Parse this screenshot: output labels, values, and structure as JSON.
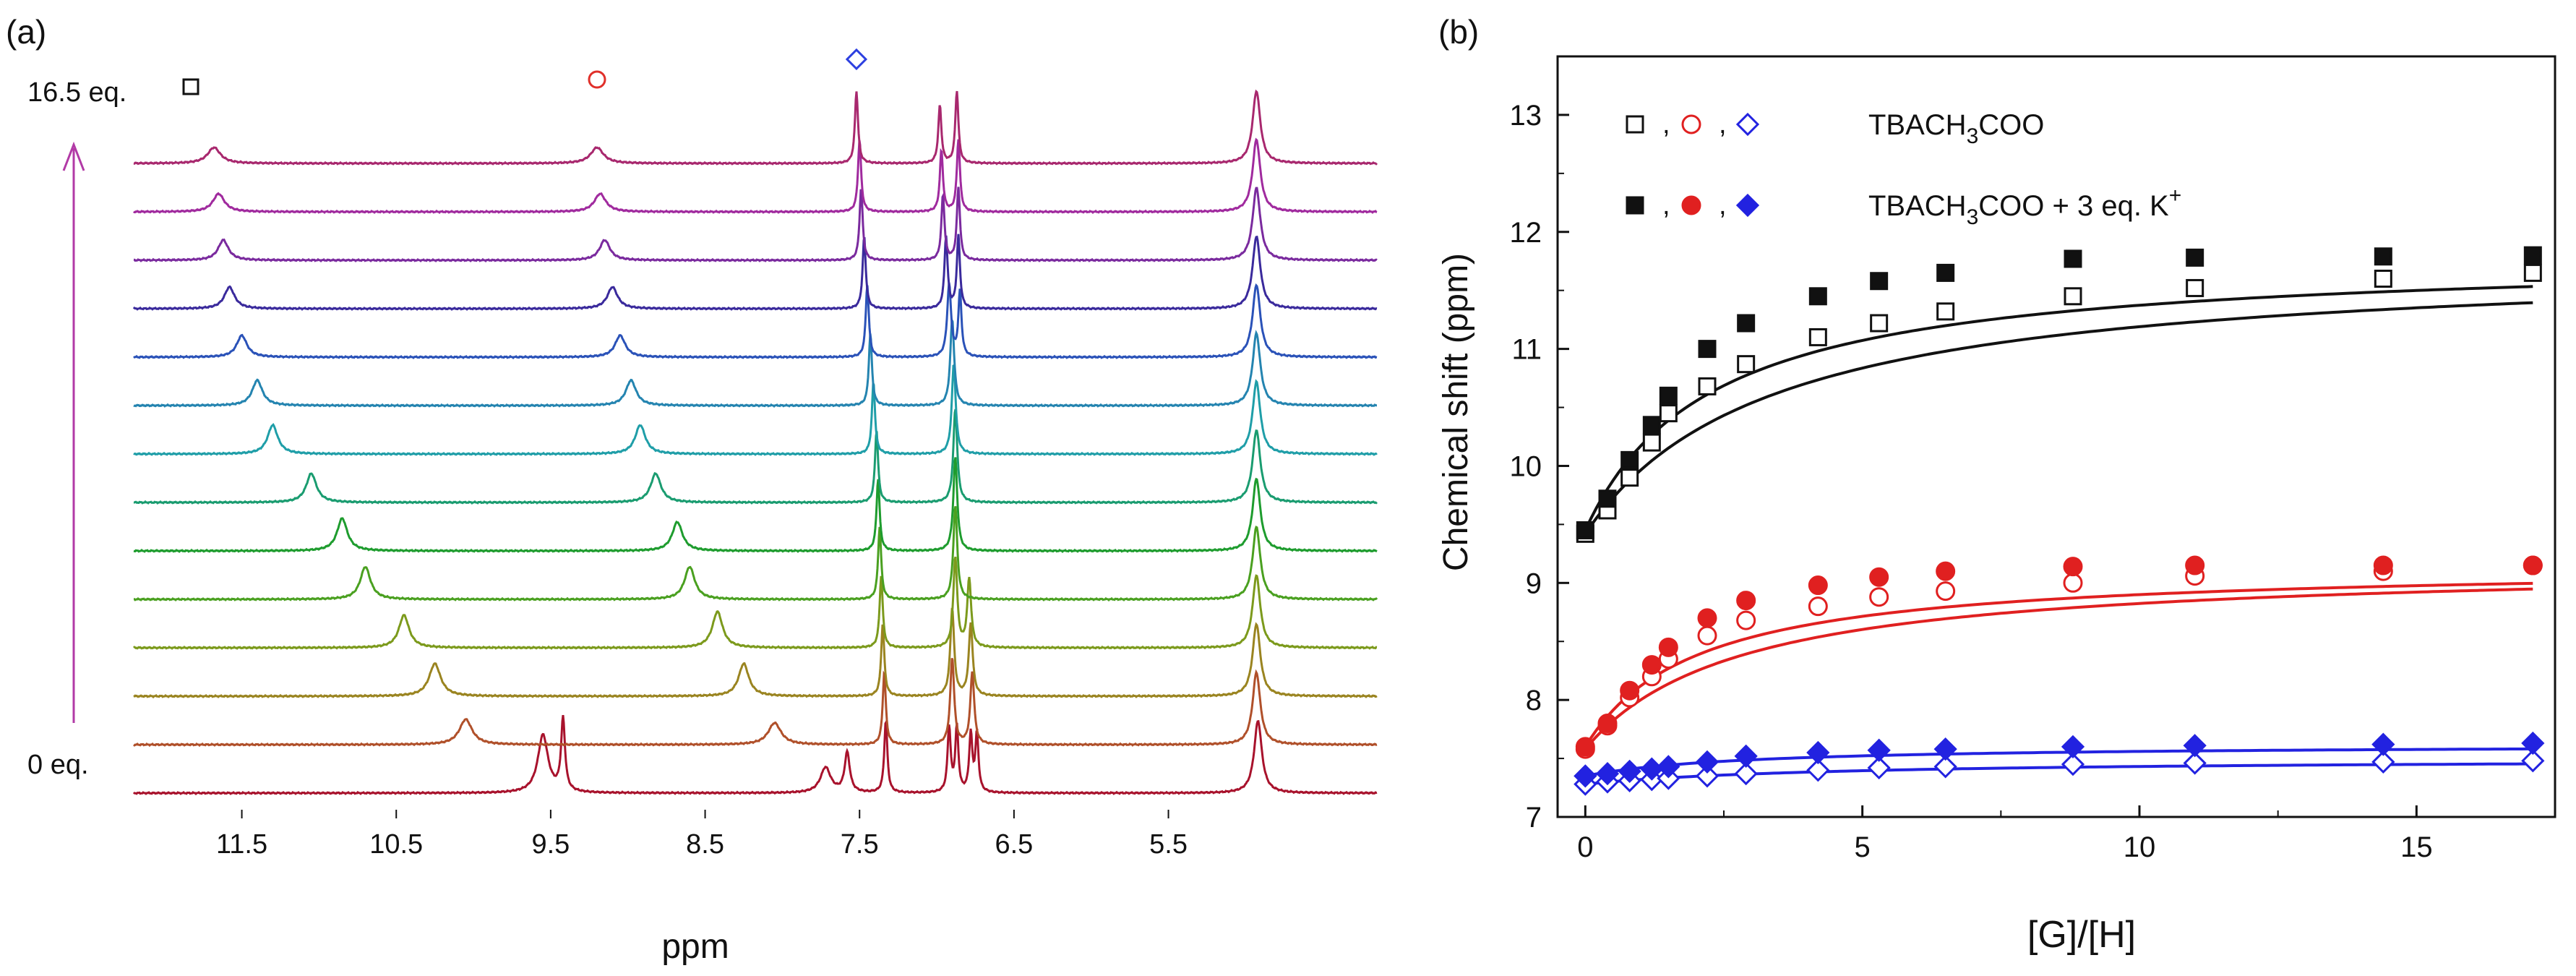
{
  "chart_data": [
    {
      "panel_label": "(a)",
      "type": "line",
      "title": "",
      "xlabel": "ppm",
      "x_reversed": true,
      "xlim": [
        12.2,
        4.15
      ],
      "x_ticks": [
        "11.5",
        "10.5",
        "9.5",
        "8.5",
        "7.5",
        "6.5",
        "5.5"
      ],
      "x_tick_values": [
        11.5,
        10.5,
        9.5,
        8.5,
        7.5,
        6.5,
        5.5
      ],
      "top_label": "16.5 eq.",
      "bottom_label": "0 eq.",
      "markers": [
        {
          "symbol": "open-square",
          "color": "#111111",
          "label": "□"
        },
        {
          "symbol": "open-circle",
          "color": "#e0302a",
          "label": "○",
          "ppm": 9.2
        },
        {
          "symbol": "open-diamond",
          "color": "#2c3fe0",
          "label": "◇",
          "ppm": 7.52
        }
      ],
      "arrow_color": "#b23aa6",
      "series_colors": [
        "#a8122c",
        "#b0502a",
        "#9a8420",
        "#7c9a1c",
        "#4aa020",
        "#1e9c2e",
        "#1a9c70",
        "#1f9ea8",
        "#2484b0",
        "#2a52b8",
        "#3a2a9c",
        "#7a2a9e",
        "#a02a9e",
        "#a8286e"
      ],
      "spectra": [
        {
          "eq": 0,
          "peaks": [
            {
              "ppm": 9.55,
              "h": 0.8,
              "w": 0.04
            },
            {
              "ppm": 9.42,
              "h": 1.0,
              "w": 0.015
            },
            {
              "ppm": 7.72,
              "h": 0.35,
              "w": 0.04
            },
            {
              "ppm": 7.58,
              "h": 0.55,
              "w": 0.02
            },
            {
              "ppm": 7.33,
              "h": 1.0,
              "w": 0.012
            },
            {
              "ppm": 6.92,
              "h": 0.9,
              "w": 0.012
            },
            {
              "ppm": 6.87,
              "h": 0.9,
              "w": 0.012
            },
            {
              "ppm": 6.78,
              "h": 0.8,
              "w": 0.012
            },
            {
              "ppm": 6.74,
              "h": 0.8,
              "w": 0.012
            },
            {
              "ppm": 4.92,
              "h": 1.0,
              "w": 0.03
            }
          ]
        },
        {
          "eq": 0.4,
          "peaks": [
            {
              "ppm": 10.05,
              "h": 0.35,
              "w": 0.05
            },
            {
              "ppm": 8.05,
              "h": 0.3,
              "w": 0.05
            },
            {
              "ppm": 7.34,
              "h": 1.0,
              "w": 0.012
            },
            {
              "ppm": 6.9,
              "h": 1.2,
              "w": 0.015
            },
            {
              "ppm": 6.77,
              "h": 1.0,
              "w": 0.015
            },
            {
              "ppm": 4.93,
              "h": 1.0,
              "w": 0.03
            }
          ]
        },
        {
          "eq": 0.8,
          "peaks": [
            {
              "ppm": 10.25,
              "h": 0.45,
              "w": 0.045
            },
            {
              "ppm": 8.25,
              "h": 0.45,
              "w": 0.04
            },
            {
              "ppm": 7.35,
              "h": 1.0,
              "w": 0.012
            },
            {
              "ppm": 6.9,
              "h": 1.2,
              "w": 0.015
            },
            {
              "ppm": 6.78,
              "h": 1.0,
              "w": 0.015
            },
            {
              "ppm": 4.93,
              "h": 1.0,
              "w": 0.03
            }
          ]
        },
        {
          "eq": 1.2,
          "peaks": [
            {
              "ppm": 10.45,
              "h": 0.45,
              "w": 0.04
            },
            {
              "ppm": 8.42,
              "h": 0.5,
              "w": 0.04
            },
            {
              "ppm": 7.36,
              "h": 1.0,
              "w": 0.012
            },
            {
              "ppm": 6.88,
              "h": 1.25,
              "w": 0.015
            },
            {
              "ppm": 6.79,
              "h": 0.95,
              "w": 0.015
            },
            {
              "ppm": 4.93,
              "h": 1.0,
              "w": 0.03
            }
          ]
        },
        {
          "eq": 1.6,
          "peaks": [
            {
              "ppm": 10.7,
              "h": 0.45,
              "w": 0.04
            },
            {
              "ppm": 8.6,
              "h": 0.45,
              "w": 0.04
            },
            {
              "ppm": 7.37,
              "h": 1.0,
              "w": 0.012
            },
            {
              "ppm": 6.88,
              "h": 1.3,
              "w": 0.015
            },
            {
              "ppm": 4.93,
              "h": 1.0,
              "w": 0.03
            }
          ]
        },
        {
          "eq": 2.2,
          "peaks": [
            {
              "ppm": 10.85,
              "h": 0.45,
              "w": 0.04
            },
            {
              "ppm": 8.68,
              "h": 0.4,
              "w": 0.04
            },
            {
              "ppm": 7.38,
              "h": 1.0,
              "w": 0.012
            },
            {
              "ppm": 6.88,
              "h": 1.3,
              "w": 0.015
            },
            {
              "ppm": 4.93,
              "h": 1.0,
              "w": 0.03
            }
          ]
        },
        {
          "eq": 2.9,
          "peaks": [
            {
              "ppm": 11.05,
              "h": 0.4,
              "w": 0.04
            },
            {
              "ppm": 8.82,
              "h": 0.4,
              "w": 0.04
            },
            {
              "ppm": 7.39,
              "h": 1.0,
              "w": 0.012
            },
            {
              "ppm": 6.88,
              "h": 1.3,
              "w": 0.015
            },
            {
              "ppm": 4.93,
              "h": 1.0,
              "w": 0.03
            }
          ]
        },
        {
          "eq": 4.2,
          "peaks": [
            {
              "ppm": 11.3,
              "h": 0.4,
              "w": 0.04
            },
            {
              "ppm": 8.92,
              "h": 0.4,
              "w": 0.04
            },
            {
              "ppm": 7.41,
              "h": 1.0,
              "w": 0.012
            },
            {
              "ppm": 6.89,
              "h": 1.25,
              "w": 0.015
            },
            {
              "ppm": 4.93,
              "h": 1.0,
              "w": 0.03
            }
          ]
        },
        {
          "eq": 5.3,
          "peaks": [
            {
              "ppm": 11.4,
              "h": 0.35,
              "w": 0.04
            },
            {
              "ppm": 8.98,
              "h": 0.35,
              "w": 0.04
            },
            {
              "ppm": 7.43,
              "h": 1.0,
              "w": 0.012
            },
            {
              "ppm": 6.9,
              "h": 1.2,
              "w": 0.015
            },
            {
              "ppm": 4.93,
              "h": 1.0,
              "w": 0.03
            }
          ]
        },
        {
          "eq": 6.5,
          "peaks": [
            {
              "ppm": 11.5,
              "h": 0.3,
              "w": 0.04
            },
            {
              "ppm": 9.05,
              "h": 0.3,
              "w": 0.04
            },
            {
              "ppm": 7.45,
              "h": 1.0,
              "w": 0.012
            },
            {
              "ppm": 6.92,
              "h": 1.0,
              "w": 0.015
            },
            {
              "ppm": 6.85,
              "h": 0.9,
              "w": 0.012
            },
            {
              "ppm": 4.93,
              "h": 1.0,
              "w": 0.03
            }
          ]
        },
        {
          "eq": 8.8,
          "peaks": [
            {
              "ppm": 11.58,
              "h": 0.3,
              "w": 0.04
            },
            {
              "ppm": 9.1,
              "h": 0.3,
              "w": 0.04
            },
            {
              "ppm": 7.47,
              "h": 1.0,
              "w": 0.012
            },
            {
              "ppm": 6.94,
              "h": 1.0,
              "w": 0.012
            },
            {
              "ppm": 6.86,
              "h": 1.0,
              "w": 0.012
            },
            {
              "ppm": 4.93,
              "h": 1.0,
              "w": 0.03
            }
          ]
        },
        {
          "eq": 11,
          "peaks": [
            {
              "ppm": 11.62,
              "h": 0.28,
              "w": 0.04
            },
            {
              "ppm": 9.15,
              "h": 0.28,
              "w": 0.04
            },
            {
              "ppm": 7.49,
              "h": 1.0,
              "w": 0.012
            },
            {
              "ppm": 6.96,
              "h": 0.9,
              "w": 0.012
            },
            {
              "ppm": 6.86,
              "h": 1.0,
              "w": 0.012
            },
            {
              "ppm": 4.93,
              "h": 1.0,
              "w": 0.03
            }
          ]
        },
        {
          "eq": 14.4,
          "peaks": [
            {
              "ppm": 11.65,
              "h": 0.25,
              "w": 0.045
            },
            {
              "ppm": 9.18,
              "h": 0.25,
              "w": 0.045
            },
            {
              "ppm": 7.5,
              "h": 1.0,
              "w": 0.012
            },
            {
              "ppm": 6.97,
              "h": 0.85,
              "w": 0.012
            },
            {
              "ppm": 6.86,
              "h": 1.0,
              "w": 0.012
            },
            {
              "ppm": 4.93,
              "h": 1.0,
              "w": 0.03
            }
          ]
        },
        {
          "eq": 16.5,
          "peaks": [
            {
              "ppm": 11.68,
              "h": 0.22,
              "w": 0.05
            },
            {
              "ppm": 9.2,
              "h": 0.22,
              "w": 0.05
            },
            {
              "ppm": 7.52,
              "h": 1.0,
              "w": 0.012
            },
            {
              "ppm": 6.98,
              "h": 0.8,
              "w": 0.012
            },
            {
              "ppm": 6.87,
              "h": 1.0,
              "w": 0.012
            },
            {
              "ppm": 4.93,
              "h": 1.0,
              "w": 0.03
            }
          ]
        }
      ]
    },
    {
      "panel_label": "(b)",
      "type": "scatter",
      "title": "",
      "xlabel": "[G]/[H]",
      "ylabel": "Chemical shift (ppm)",
      "xlim": [
        -0.5,
        17.5
      ],
      "ylim": [
        7,
        13.5
      ],
      "x_ticks": [
        "0",
        "5",
        "10",
        "15"
      ],
      "x_tick_values": [
        0,
        5,
        10,
        15
      ],
      "y_ticks": [
        "7",
        "8",
        "9",
        "10",
        "11",
        "12",
        "13"
      ],
      "y_tick_values": [
        7,
        8,
        9,
        10,
        11,
        12,
        13
      ],
      "legend": [
        {
          "symbols": [
            "open-square",
            "open-circle",
            "open-diamond"
          ],
          "colors": [
            "#111111",
            "#e02020",
            "#2222e0"
          ],
          "separator": ",",
          "text": "TBACH",
          "sub": "3",
          "text_after": "COO",
          "sup": ""
        },
        {
          "symbols": [
            "filled-square",
            "filled-circle",
            "filled-diamond"
          ],
          "colors": [
            "#111111",
            "#e02020",
            "#2222e0"
          ],
          "separator": ",",
          "text": "TBACH",
          "sub": "3",
          "text_after": "COO + 3 eq. K",
          "sup": "+"
        }
      ],
      "x": [
        0,
        0.4,
        0.8,
        1.2,
        1.5,
        2.2,
        2.9,
        4.2,
        5.3,
        6.5,
        8.8,
        11,
        14.4,
        17.1
      ],
      "series": [
        {
          "name": "□ TBACH3COO",
          "color": "#111111",
          "marker": "open-square",
          "values": [
            9.42,
            9.62,
            9.9,
            10.2,
            10.45,
            10.68,
            10.87,
            11.1,
            11.22,
            11.32,
            11.45,
            11.52,
            11.6,
            11.65
          ]
        },
        {
          "name": "○ TBACH3COO",
          "color": "#e02020",
          "marker": "open-circle",
          "values": [
            7.58,
            7.78,
            8.02,
            8.2,
            8.35,
            8.55,
            8.68,
            8.8,
            8.88,
            8.93,
            9.0,
            9.06,
            9.1,
            9.15
          ]
        },
        {
          "name": "◇ TBACH3COO",
          "color": "#2222e0",
          "marker": "open-diamond",
          "values": [
            7.28,
            7.3,
            7.31,
            7.32,
            7.33,
            7.35,
            7.37,
            7.4,
            7.42,
            7.43,
            7.45,
            7.46,
            7.47,
            7.48
          ]
        },
        {
          "name": "■ TBACH3COO + 3 eq. K+",
          "color": "#111111",
          "marker": "filled-square",
          "values": [
            9.45,
            9.72,
            10.05,
            10.35,
            10.6,
            11.0,
            11.22,
            11.45,
            11.58,
            11.65,
            11.77,
            11.78,
            11.79,
            11.8
          ]
        },
        {
          "name": "● TBACH3COO + 3 eq. K+",
          "color": "#e02020",
          "marker": "filled-circle",
          "values": [
            7.6,
            7.8,
            8.08,
            8.3,
            8.45,
            8.7,
            8.85,
            8.98,
            9.05,
            9.1,
            9.14,
            9.15,
            9.15,
            9.15
          ]
        },
        {
          "name": "◆ TBACH3COO + 3 eq. K+",
          "color": "#2222e0",
          "marker": "filled-diamond",
          "values": [
            7.35,
            7.37,
            7.39,
            7.41,
            7.43,
            7.47,
            7.52,
            7.55,
            7.57,
            7.58,
            7.6,
            7.61,
            7.62,
            7.63
          ]
        }
      ],
      "fits": [
        {
          "series": 0,
          "color": "#111111",
          "y0": 9.42,
          "ymax": 11.78,
          "k": 0.3
        },
        {
          "series": 1,
          "color": "#e02020",
          "y0": 7.58,
          "ymax": 9.17,
          "k": 0.36
        },
        {
          "series": 2,
          "color": "#2222e0",
          "y0": 7.28,
          "ymax": 7.5,
          "k": 0.22
        },
        {
          "series": 3,
          "color": "#111111",
          "y0": 9.45,
          "ymax": 11.81,
          "k": 0.44
        },
        {
          "series": 4,
          "color": "#e02020",
          "y0": 7.6,
          "ymax": 9.16,
          "k": 0.5
        },
        {
          "series": 5,
          "color": "#2222e0",
          "y0": 7.35,
          "ymax": 7.62,
          "k": 0.35
        }
      ]
    }
  ]
}
